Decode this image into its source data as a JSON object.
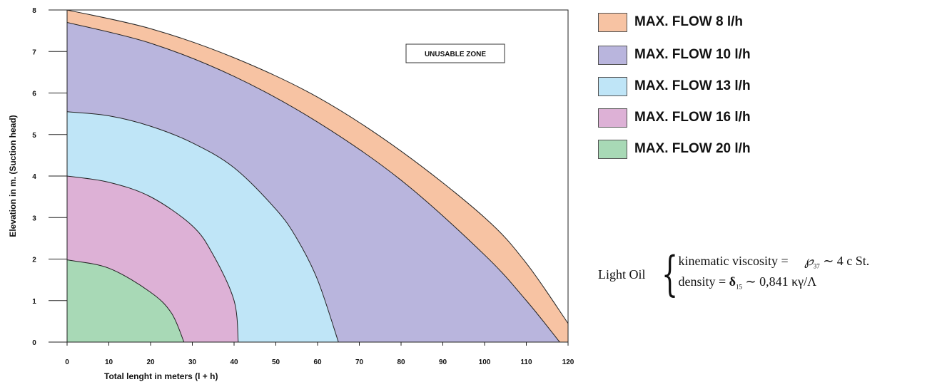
{
  "chart_data": {
    "type": "area",
    "xlabel": "Total lenght in meters (l + h)",
    "ylabel": "Elevation in m. (Suction head)",
    "xlim": [
      0,
      120
    ],
    "ylim": [
      0,
      8
    ],
    "x_ticks": [
      "0",
      "10",
      "20",
      "30",
      "40",
      "50",
      "60",
      "70",
      "80",
      "90",
      "100",
      "110",
      "120"
    ],
    "y_ticks": [
      "0",
      "1",
      "2",
      "3",
      "4",
      "5",
      "6",
      "7",
      "8"
    ],
    "annotation": "UNUSABLE ZONE",
    "series": [
      {
        "name": "MAX. FLOW 8 l/h",
        "color": "#f7c3a3",
        "x": [
          0,
          20,
          40,
          60,
          80,
          100,
          110,
          120
        ],
        "y": [
          8.0,
          7.55,
          6.85,
          5.9,
          4.6,
          3.0,
          1.9,
          0.45
        ]
      },
      {
        "name": "MAX. FLOW 10 l/h",
        "color": "#b9b5dd",
        "x": [
          0,
          20,
          40,
          60,
          80,
          100,
          110,
          118
        ],
        "y": [
          7.7,
          7.2,
          6.4,
          5.3,
          3.9,
          2.1,
          1.0,
          0.0
        ]
      },
      {
        "name": "MAX. FLOW 13 l/h",
        "color": "#bfe5f7",
        "x": [
          0,
          10,
          20,
          30,
          40,
          50,
          55,
          60,
          65
        ],
        "y": [
          5.55,
          5.45,
          5.2,
          4.8,
          4.2,
          3.2,
          2.5,
          1.5,
          0.0
        ]
      },
      {
        "name": "MAX. FLOW 16 l/h",
        "color": "#ddb1d6",
        "x": [
          0,
          10,
          20,
          30,
          35,
          40,
          41
        ],
        "y": [
          4.0,
          3.85,
          3.5,
          2.8,
          2.1,
          1.0,
          0.0
        ]
      },
      {
        "name": "MAX. FLOW 20 l/h",
        "color": "#a8d9b6",
        "x": [
          0,
          10,
          20,
          25,
          28
        ],
        "y": [
          1.98,
          1.78,
          1.2,
          0.7,
          0.0
        ]
      }
    ]
  },
  "fluid": {
    "name": "Light Oil",
    "viscosity_label": "kinematic viscosity =",
    "viscosity_symbol": "℘",
    "viscosity_sub": "37",
    "viscosity_value": "∼ 4 c St.",
    "density_label": "density =",
    "density_symbol": "δ",
    "density_sub": "15",
    "density_value": "∼ 0,841 κγ/Λ"
  }
}
